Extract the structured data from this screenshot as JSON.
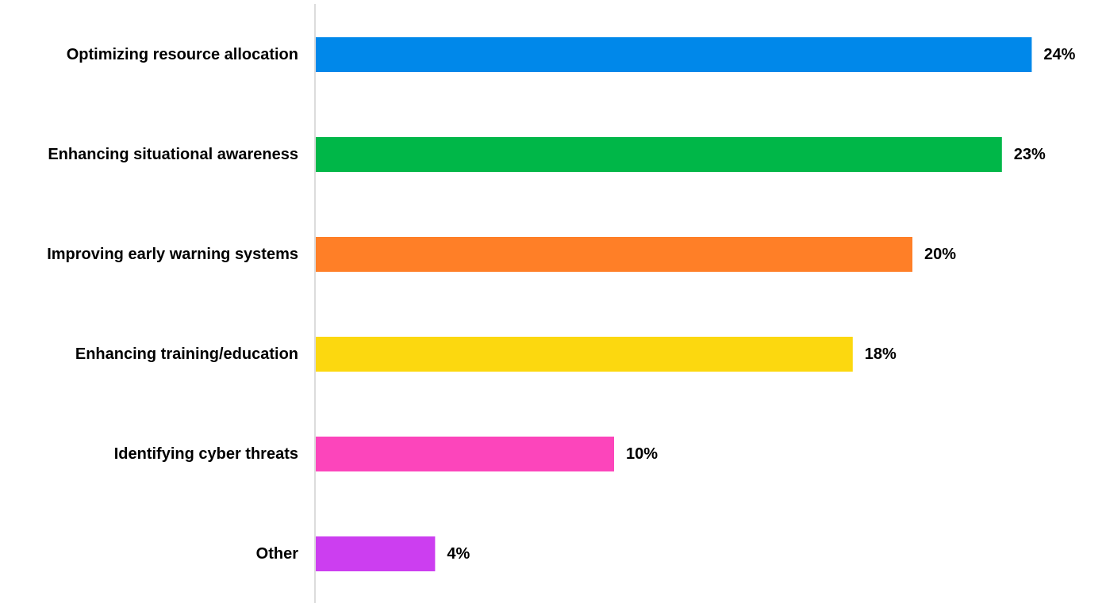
{
  "chart_data": {
    "type": "bar",
    "orientation": "horizontal",
    "categories": [
      "Optimizing resource allocation",
      "Enhancing situational awareness",
      "Improving early warning systems",
      "Enhancing training/education",
      "Identifying cyber threats",
      "Other"
    ],
    "values": [
      24,
      23,
      20,
      18,
      10,
      4
    ],
    "value_labels": [
      "24%",
      "23%",
      "20%",
      "18%",
      "10%",
      "4%"
    ],
    "colors": [
      "#0088ea",
      "#00b748",
      "#ff7f27",
      "#fcd80f",
      "#fc45bb",
      "#cc3ef0"
    ],
    "unit": "%",
    "title": "",
    "xlabel": "",
    "ylabel": "",
    "grid": false,
    "legend": "none"
  }
}
